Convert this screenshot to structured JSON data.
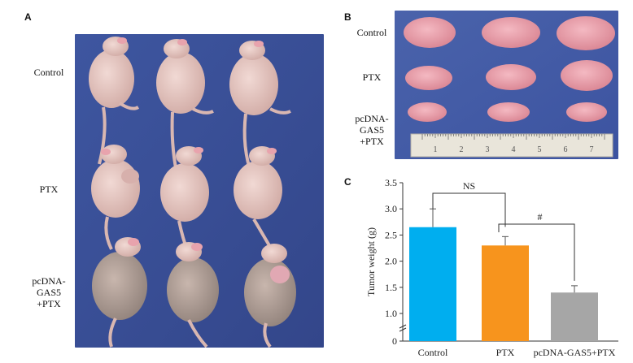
{
  "panels": {
    "a": {
      "letter": "A",
      "row_labels": [
        "Control",
        "PTX",
        "pcDNA-\nGAS5\n+PTX"
      ]
    },
    "b": {
      "letter": "B",
      "row_labels": [
        "Control",
        "PTX",
        "pcDNA-\nGAS5\n+PTX"
      ],
      "ruler_numbers": [
        "1",
        "2",
        "3",
        "4",
        "5",
        "6",
        "7"
      ]
    },
    "c": {
      "letter": "C"
    }
  },
  "colors": {
    "photo_blue": "#3a4f96",
    "mouse_skin": "#e5c7c2",
    "tumor_pink": "#e69aa5",
    "bar_control": "#00aeef",
    "bar_ptx": "#f7941d",
    "bar_combo": "#a6a6a6"
  },
  "chart_data": {
    "type": "bar",
    "categories": [
      "Control",
      "PTX",
      "pcDNA-GAS5+PTX"
    ],
    "values": [
      2.65,
      2.3,
      1.4
    ],
    "errors": [
      0.35,
      0.17,
      0.13
    ],
    "ylabel": "Tumor weight (g)",
    "xlabel": "",
    "ylim": [
      0,
      3.5
    ],
    "yticks": [
      "0",
      "1.0",
      "1.5",
      "2.0",
      "2.5",
      "3.0",
      "3.5"
    ],
    "annotations": [
      {
        "text": "NS",
        "between": [
          "Control",
          "PTX"
        ]
      },
      {
        "text": "#",
        "between": [
          "PTX",
          "pcDNA-GAS5+PTX"
        ]
      }
    ],
    "grid": false,
    "legend": "none"
  }
}
